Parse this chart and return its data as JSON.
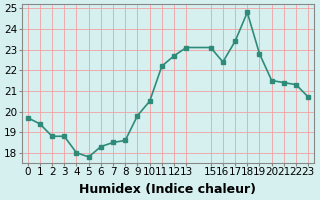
{
  "x": [
    0,
    1,
    2,
    3,
    4,
    5,
    6,
    7,
    8,
    9,
    10,
    11,
    12,
    13,
    15,
    16,
    17,
    18,
    19,
    20,
    21,
    22,
    23
  ],
  "y": [
    19.7,
    19.4,
    18.8,
    18.8,
    18.0,
    17.8,
    18.3,
    18.5,
    18.6,
    19.8,
    20.5,
    22.2,
    22.7,
    23.1,
    23.1,
    22.4,
    23.4,
    24.8,
    22.8,
    21.5,
    21.4,
    21.3,
    20.7
  ],
  "line_color": "#2e8b7a",
  "marker_color": "#2e8b7a",
  "bg_color": "#d6f0f0",
  "grid_color": "#f0a0a0",
  "xlabel": "Humidex (Indice chaleur)",
  "ylabel": "",
  "title": "",
  "xlim": [
    -0.5,
    23.5
  ],
  "ylim": [
    17.5,
    25.2
  ],
  "yticks": [
    18,
    19,
    20,
    21,
    22,
    23,
    24,
    25
  ],
  "xticks": [
    0,
    1,
    2,
    3,
    4,
    5,
    6,
    7,
    8,
    9,
    10,
    11,
    12,
    13,
    15,
    16,
    17,
    18,
    19,
    20,
    21,
    22,
    23
  ],
  "xtick_labels": [
    "0",
    "1",
    "2",
    "3",
    "4",
    "5",
    "6",
    "7",
    "8",
    "9",
    "10",
    "11",
    "12",
    "13",
    "15",
    "16",
    "17",
    "18",
    "19",
    "20",
    "21",
    "22",
    "23"
  ],
  "font_size": 7.5,
  "xlabel_fontsize": 9
}
